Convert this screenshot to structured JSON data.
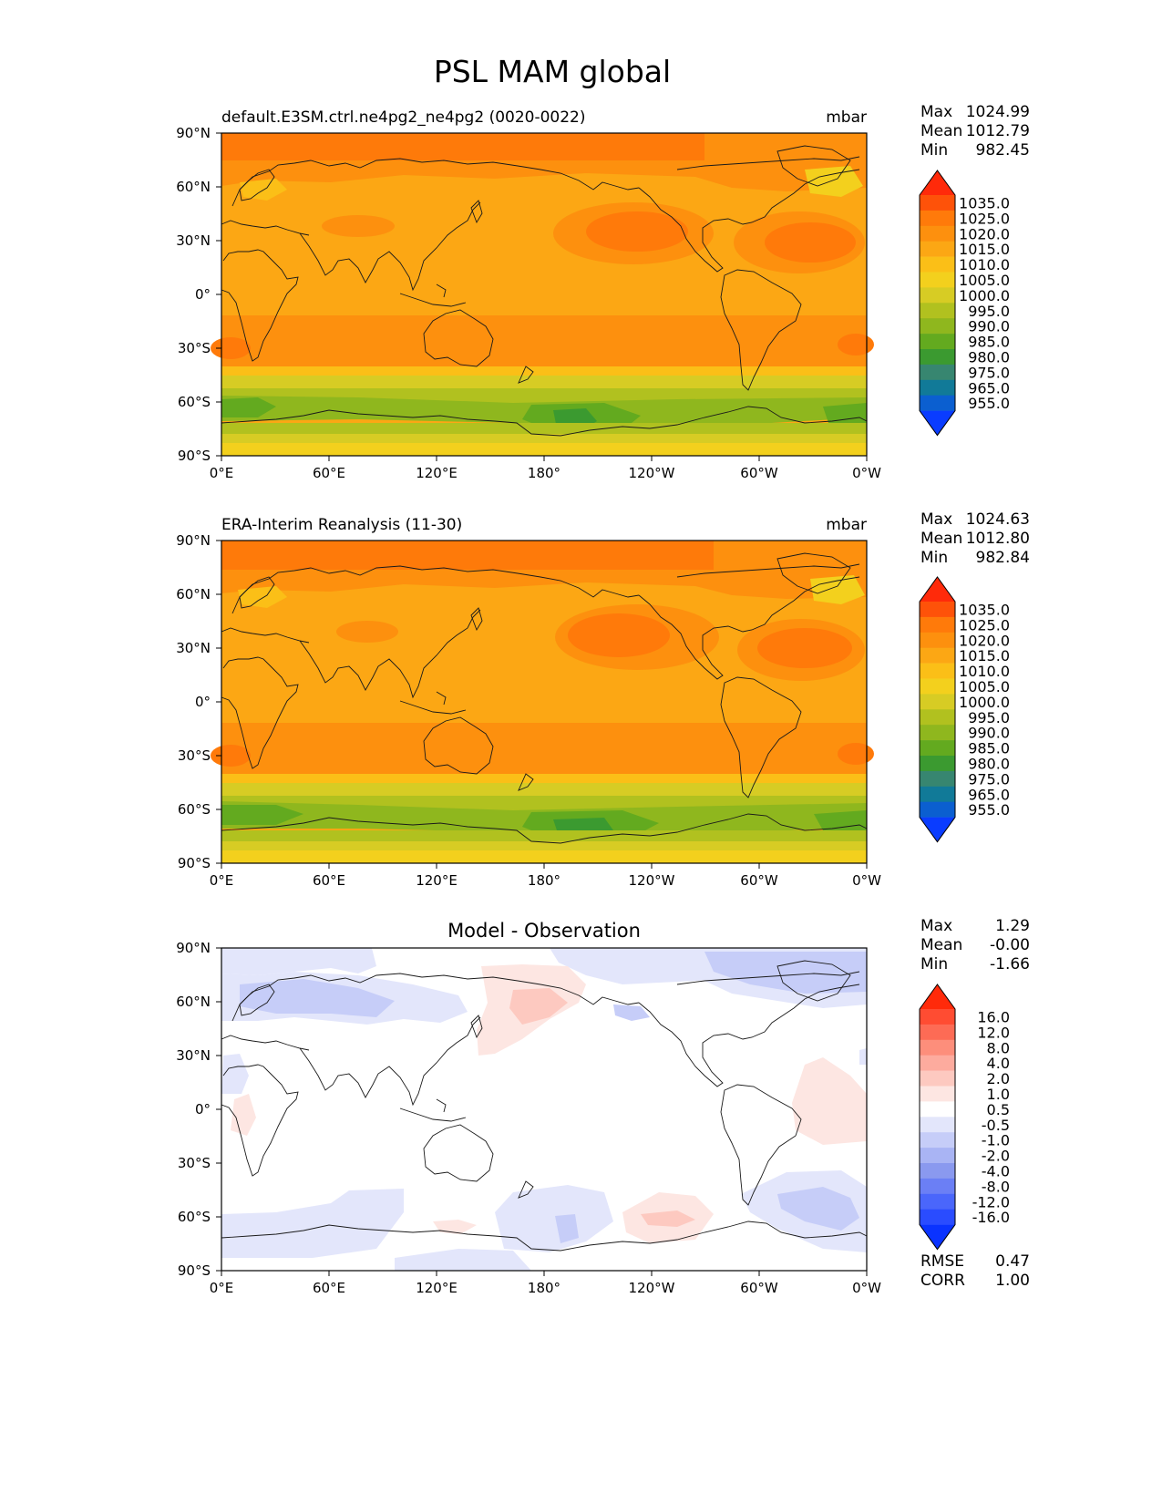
{
  "figure": {
    "title": "PSL MAM global"
  },
  "axes": {
    "x_ticks": [
      "0°E",
      "60°E",
      "120°E",
      "180°",
      "120°W",
      "60°W",
      "0°W"
    ],
    "y_ticks": [
      "90°N",
      "60°N",
      "30°N",
      "0°",
      "30°S",
      "60°S",
      "90°S"
    ]
  },
  "panels": [
    {
      "title": "default.E3SM.ctrl.ne4pg2_ne4pg2 (0020-0022)",
      "units": "mbar",
      "stats": [
        {
          "label": "Max",
          "value": "1024.99"
        },
        {
          "label": "Mean",
          "value": "1012.79"
        },
        {
          "label": "Min",
          "value": "982.45"
        }
      ],
      "colorbar": {
        "labels": [
          "1035.0",
          "1025.0",
          "1020.0",
          "1015.0",
          "1010.0",
          "1005.0",
          "1000.0",
          "995.0",
          "990.0",
          "985.0",
          "980.0",
          "975.0",
          "965.0",
          "955.0"
        ],
        "colors": [
          "#ff2a0a",
          "#fe5209",
          "#ff7a0a",
          "#fd900e",
          "#fca714",
          "#fbbf17",
          "#f3d01d",
          "#d7cc24",
          "#b1c11f",
          "#8fb71e",
          "#63aa1f",
          "#3b9a30",
          "#378670",
          "#117a98",
          "#0b5fd0",
          "#0a3cff"
        ]
      }
    },
    {
      "title": "ERA-Interim Reanalysis (11-30)",
      "units": "mbar",
      "stats": [
        {
          "label": "Max",
          "value": "1024.63"
        },
        {
          "label": "Mean",
          "value": "1012.80"
        },
        {
          "label": "Min",
          "value": "982.84"
        }
      ],
      "colorbar": {
        "labels": [
          "1035.0",
          "1025.0",
          "1020.0",
          "1015.0",
          "1010.0",
          "1005.0",
          "1000.0",
          "995.0",
          "990.0",
          "985.0",
          "980.0",
          "975.0",
          "965.0",
          "955.0"
        ],
        "colors": [
          "#ff2a0a",
          "#fe5209",
          "#ff7a0a",
          "#fd900e",
          "#fca714",
          "#fbbf17",
          "#f3d01d",
          "#d7cc24",
          "#b1c11f",
          "#8fb71e",
          "#63aa1f",
          "#3b9a30",
          "#378670",
          "#117a98",
          "#0b5fd0",
          "#0a3cff"
        ]
      }
    },
    {
      "title": "Model - Observation",
      "units": "",
      "stats": [
        {
          "label": "Max",
          "value": "1.29"
        },
        {
          "label": "Mean",
          "value": "-0.00"
        },
        {
          "label": "Min",
          "value": "-1.66"
        }
      ],
      "colorbar": {
        "labels": [
          "16.0",
          "12.0",
          "8.0",
          "4.0",
          "2.0",
          "1.0",
          "0.5",
          "-0.5",
          "-1.0",
          "-2.0",
          "-4.0",
          "-8.0",
          "-12.0",
          "-16.0"
        ],
        "colors": [
          "#ff2a0a",
          "#ff4c32",
          "#fd6b55",
          "#fd8e7b",
          "#fdab9e",
          "#fdc9c0",
          "#fde6e2",
          "#ffffff",
          "#e3e6fb",
          "#c6cdf8",
          "#a9b4f4",
          "#8a99ef",
          "#6b7ff5",
          "#4a66fb",
          "#2a4cff",
          "#0a33ff"
        ]
      },
      "metrics": [
        {
          "label": "RMSE",
          "value": "0.47"
        },
        {
          "label": "CORR",
          "value": "1.00"
        }
      ]
    }
  ]
}
